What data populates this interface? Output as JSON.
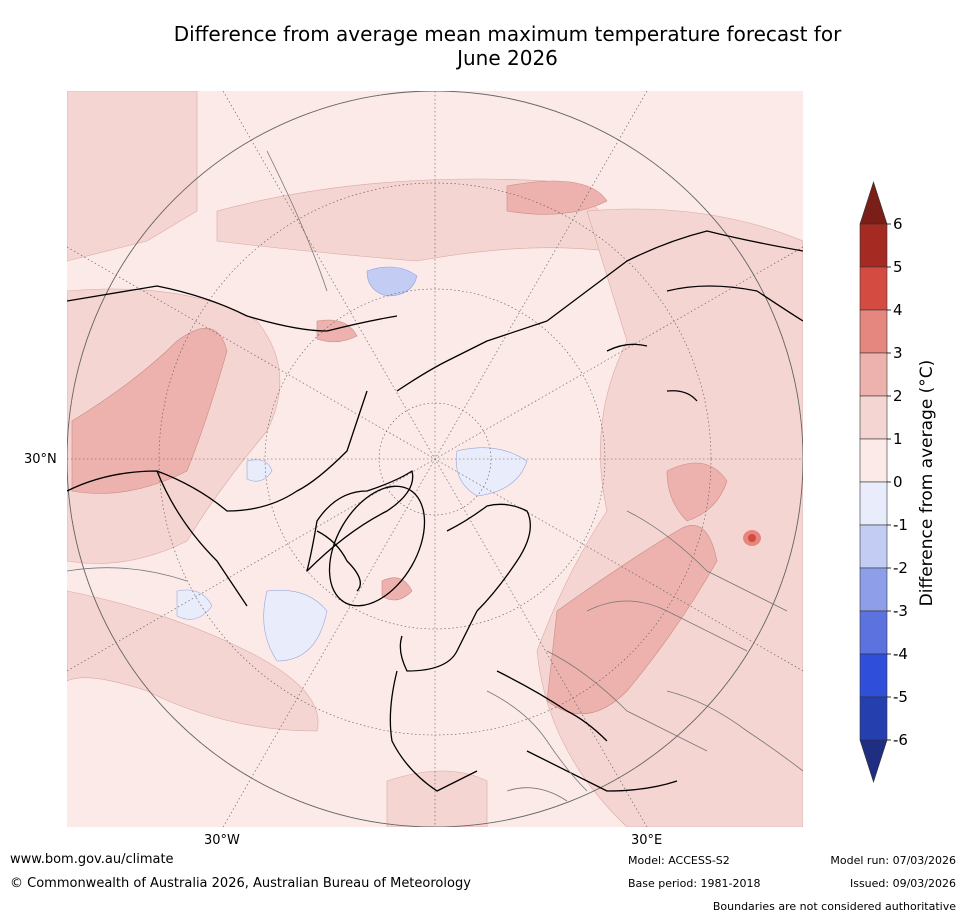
{
  "title": {
    "line1": "Difference from average mean maximum temperature forecast for",
    "line2": "June 2026"
  },
  "map": {
    "projection": "North polar stereographic",
    "lat_label": "30°N",
    "lon_labels": [
      "30°W",
      "30°E"
    ]
  },
  "colorbar": {
    "label": "Difference from average (°C)",
    "ticks": [
      "6",
      "5",
      "4",
      "3",
      "2",
      "1",
      "0",
      "-1",
      "-2",
      "-3",
      "-4",
      "-5",
      "-6"
    ],
    "colors": {
      "over": "#7a1f18",
      "5_6": "#a52a22",
      "4_5": "#d44c41",
      "3_4": "#e6877f",
      "2_3": "#edb2ad",
      "1_2": "#f5d5d2",
      "0_1": "#fbeae7",
      "m1_0": "#e8ecfb",
      "m2_m1": "#c3cdf3",
      "m3_m2": "#8f9ee8",
      "m4_m3": "#5c72df",
      "m5_m4": "#2f4ed9",
      "m6_m5": "#263fae",
      "under": "#1f2e80"
    }
  },
  "footer": {
    "url": "www.bom.gov.au/climate",
    "copyright": "© Commonwealth of Australia 2026, Australian Bureau of Meteorology",
    "model": "Model: ACCESS-S2",
    "base_period": "Base period: 1981-2018",
    "model_run": "Model run: 07/03/2026",
    "issued": "Issued: 09/03/2026",
    "boundaries": "Boundaries are not considered authoritative"
  }
}
